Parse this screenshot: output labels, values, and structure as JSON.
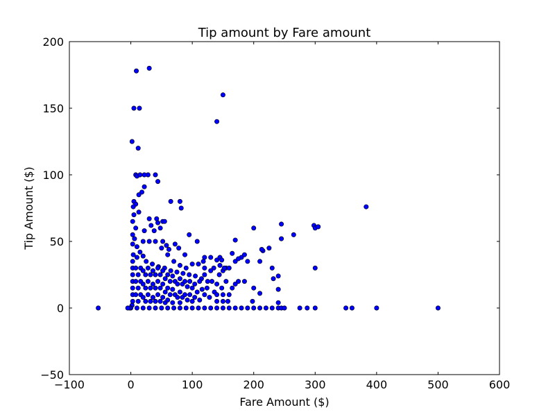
{
  "chart_data": {
    "type": "scatter",
    "title": "Tip amount by Fare amount",
    "xlabel": "Fare Amount ($)",
    "ylabel": "Tip Amount ($)",
    "xlim": [
      -100,
      600
    ],
    "ylim": [
      -50,
      200
    ],
    "xticks": [
      -100,
      0,
      100,
      200,
      300,
      400,
      500,
      600
    ],
    "yticks": [
      -50,
      0,
      50,
      100,
      150,
      200
    ],
    "xtick_labels": [
      "−100",
      "0",
      "100",
      "200",
      "300",
      "400",
      "500",
      "600"
    ],
    "ytick_labels": [
      "−50",
      "0",
      "50",
      "100",
      "150",
      "200"
    ],
    "grid": false,
    "marker_color": "#0000ff",
    "marker_edge_color": "#000000",
    "points": [
      [
        -53,
        0
      ],
      [
        9,
        178
      ],
      [
        30,
        180
      ],
      [
        14,
        150
      ],
      [
        5,
        150
      ],
      [
        150,
        160
      ],
      [
        140,
        140
      ],
      [
        2,
        125
      ],
      [
        12,
        120
      ],
      [
        8,
        100
      ],
      [
        10,
        99
      ],
      [
        15,
        100
      ],
      [
        22,
        100
      ],
      [
        28,
        100
      ],
      [
        40,
        100
      ],
      [
        44,
        95
      ],
      [
        22,
        91
      ],
      [
        18,
        87
      ],
      [
        13,
        85
      ],
      [
        5,
        80
      ],
      [
        8,
        78
      ],
      [
        4,
        76
      ],
      [
        13,
        72
      ],
      [
        30,
        67
      ],
      [
        42,
        67
      ],
      [
        44,
        64
      ],
      [
        52,
        65
      ],
      [
        55,
        65
      ],
      [
        65,
        80
      ],
      [
        80,
        80
      ],
      [
        82,
        75
      ],
      [
        95,
        55
      ],
      [
        108,
        50
      ],
      [
        200,
        60
      ],
      [
        245,
        63
      ],
      [
        265,
        55
      ],
      [
        245,
        52
      ],
      [
        298,
        62
      ],
      [
        300,
        60
      ],
      [
        305,
        61
      ],
      [
        383,
        76
      ],
      [
        300,
        30
      ],
      [
        225,
        45
      ],
      [
        215,
        43
      ],
      [
        213,
        44
      ],
      [
        210,
        35
      ],
      [
        230,
        30
      ],
      [
        240,
        24
      ],
      [
        232,
        22
      ],
      [
        240,
        14
      ],
      [
        210,
        11
      ],
      [
        198,
        5
      ],
      [
        240,
        4
      ],
      [
        170,
        51
      ],
      [
        165,
        41
      ],
      [
        180,
        38
      ],
      [
        185,
        40
      ],
      [
        190,
        35
      ],
      [
        175,
        20
      ],
      [
        185,
        20
      ],
      [
        170,
        18
      ],
      [
        200,
        15
      ],
      [
        5,
        70
      ],
      [
        3,
        65
      ],
      [
        8,
        60
      ],
      [
        3,
        55
      ],
      [
        6,
        52
      ],
      [
        3,
        48
      ],
      [
        10,
        46
      ],
      [
        15,
        42
      ],
      [
        4,
        40
      ],
      [
        10,
        38
      ],
      [
        20,
        39
      ],
      [
        25,
        35
      ],
      [
        35,
        33
      ],
      [
        45,
        31
      ],
      [
        55,
        30
      ],
      [
        65,
        28
      ],
      [
        75,
        27
      ],
      [
        85,
        26
      ],
      [
        95,
        25
      ],
      [
        105,
        24
      ],
      [
        115,
        22
      ],
      [
        125,
        20
      ],
      [
        135,
        30
      ],
      [
        145,
        32
      ],
      [
        155,
        30
      ],
      [
        130,
        38
      ],
      [
        140,
        36
      ],
      [
        120,
        38
      ],
      [
        110,
        33
      ],
      [
        100,
        33
      ],
      [
        90,
        30
      ],
      [
        80,
        32
      ],
      [
        70,
        35
      ],
      [
        60,
        40
      ],
      [
        50,
        45
      ],
      [
        40,
        50
      ],
      [
        30,
        50
      ],
      [
        20,
        50
      ],
      [
        22,
        58
      ],
      [
        33,
        62
      ],
      [
        48,
        60
      ],
      [
        38,
        58
      ],
      [
        52,
        50
      ],
      [
        58,
        47
      ],
      [
        62,
        44
      ],
      [
        72,
        48
      ],
      [
        78,
        45
      ],
      [
        88,
        40
      ],
      [
        3,
        35
      ],
      [
        3,
        30
      ],
      [
        3,
        25
      ],
      [
        3,
        20
      ],
      [
        3,
        15
      ],
      [
        3,
        10
      ],
      [
        3,
        5
      ],
      [
        2,
        2
      ],
      [
        0,
        0
      ],
      [
        -2,
        0
      ],
      [
        -5,
        0
      ],
      [
        8,
        30
      ],
      [
        8,
        20
      ],
      [
        8,
        10
      ],
      [
        12,
        25
      ],
      [
        12,
        15
      ],
      [
        12,
        5
      ],
      [
        16,
        30
      ],
      [
        16,
        20
      ],
      [
        16,
        10
      ],
      [
        20,
        28
      ],
      [
        20,
        18
      ],
      [
        20,
        8
      ],
      [
        24,
        25
      ],
      [
        24,
        15
      ],
      [
        24,
        5
      ],
      [
        28,
        30
      ],
      [
        28,
        20
      ],
      [
        28,
        10
      ],
      [
        32,
        25
      ],
      [
        32,
        15
      ],
      [
        32,
        5
      ],
      [
        36,
        28
      ],
      [
        36,
        18
      ],
      [
        36,
        8
      ],
      [
        40,
        25
      ],
      [
        40,
        15
      ],
      [
        40,
        5
      ],
      [
        44,
        30
      ],
      [
        44,
        20
      ],
      [
        44,
        10
      ],
      [
        48,
        25
      ],
      [
        48,
        15
      ],
      [
        48,
        5
      ],
      [
        52,
        28
      ],
      [
        52,
        18
      ],
      [
        52,
        8
      ],
      [
        56,
        22
      ],
      [
        56,
        12
      ],
      [
        56,
        4
      ],
      [
        60,
        25
      ],
      [
        60,
        15
      ],
      [
        60,
        6
      ],
      [
        64,
        20
      ],
      [
        64,
        10
      ],
      [
        68,
        24
      ],
      [
        68,
        14
      ],
      [
        68,
        4
      ],
      [
        72,
        20
      ],
      [
        72,
        10
      ],
      [
        76,
        18
      ],
      [
        76,
        8
      ],
      [
        80,
        22
      ],
      [
        80,
        12
      ],
      [
        80,
        4
      ],
      [
        84,
        18
      ],
      [
        84,
        8
      ],
      [
        88,
        20
      ],
      [
        88,
        10
      ],
      [
        92,
        16
      ],
      [
        92,
        6
      ],
      [
        96,
        20
      ],
      [
        96,
        10
      ],
      [
        100,
        15
      ],
      [
        100,
        5
      ],
      [
        104,
        18
      ],
      [
        104,
        8
      ],
      [
        108,
        12
      ],
      [
        112,
        20
      ],
      [
        112,
        6
      ],
      [
        116,
        14
      ],
      [
        120,
        10
      ],
      [
        120,
        25
      ],
      [
        124,
        15
      ],
      [
        128,
        8
      ],
      [
        132,
        20
      ],
      [
        136,
        12
      ],
      [
        140,
        18
      ],
      [
        140,
        5
      ],
      [
        144,
        25
      ],
      [
        148,
        15
      ],
      [
        150,
        5
      ],
      [
        155,
        20
      ],
      [
        160,
        10
      ],
      [
        165,
        15
      ],
      [
        130,
        28
      ],
      [
        150,
        28
      ],
      [
        160,
        30
      ],
      [
        170,
        35
      ],
      [
        175,
        37
      ],
      [
        145,
        38
      ],
      [
        148,
        36
      ],
      [
        152,
        30
      ],
      [
        120,
        30
      ],
      [
        118,
        35
      ],
      [
        158,
        5
      ],
      [
        150,
        10
      ],
      [
        140,
        10
      ],
      [
        10,
        0
      ],
      [
        20,
        0
      ],
      [
        30,
        0
      ],
      [
        40,
        0
      ],
      [
        50,
        0
      ],
      [
        60,
        0
      ],
      [
        70,
        0
      ],
      [
        80,
        0
      ],
      [
        90,
        0
      ],
      [
        100,
        0
      ],
      [
        110,
        0
      ],
      [
        120,
        0
      ],
      [
        130,
        0
      ],
      [
        140,
        0
      ],
      [
        150,
        0
      ],
      [
        160,
        0
      ],
      [
        170,
        0
      ],
      [
        180,
        0
      ],
      [
        190,
        0
      ],
      [
        200,
        0
      ],
      [
        210,
        0
      ],
      [
        220,
        0
      ],
      [
        230,
        0
      ],
      [
        240,
        0
      ],
      [
        245,
        0
      ],
      [
        250,
        0
      ],
      [
        275,
        0
      ],
      [
        287,
        0
      ],
      [
        300,
        0
      ],
      [
        350,
        0
      ],
      [
        360,
        0
      ],
      [
        400,
        0
      ],
      [
        500,
        0
      ]
    ]
  }
}
